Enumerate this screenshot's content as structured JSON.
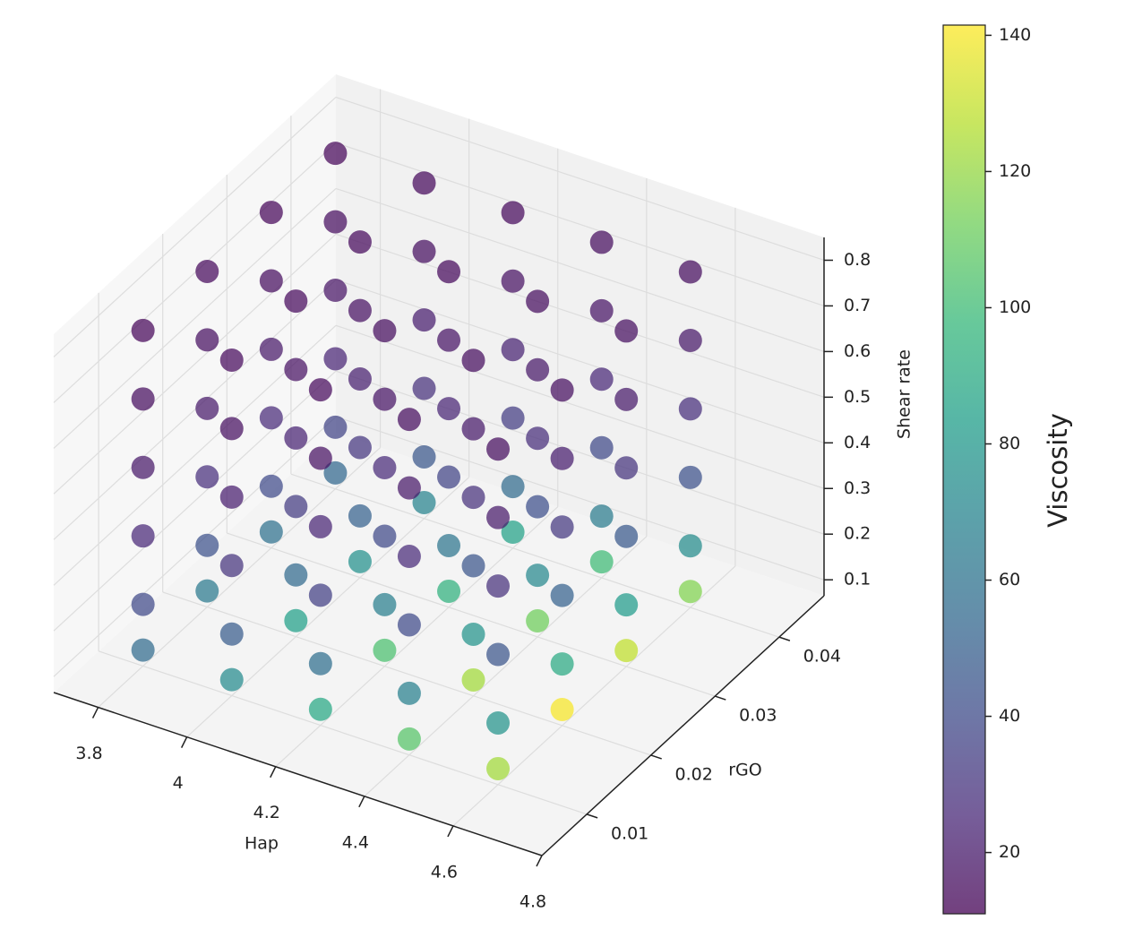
{
  "chart_data": {
    "type": "scatter3d",
    "xlabel": "Hap",
    "ylabel": "rGO",
    "zlabel": "Shear rate",
    "colorbar_label": "Viscosity",
    "x": [
      3.8,
      3.8,
      3.8,
      3.8,
      3.8,
      3.8,
      3.8,
      3.8,
      3.8,
      3.8,
      3.8,
      3.8,
      3.8,
      3.8,
      3.8,
      3.8,
      3.8,
      3.8,
      3.8,
      3.8,
      3.8,
      3.8,
      3.8,
      3.8,
      4.0,
      4.0,
      4.0,
      4.0,
      4.0,
      4.0,
      4.0,
      4.0,
      4.0,
      4.0,
      4.0,
      4.0,
      4.0,
      4.0,
      4.0,
      4.0,
      4.0,
      4.0,
      4.0,
      4.0,
      4.0,
      4.0,
      4.0,
      4.0,
      4.2,
      4.2,
      4.2,
      4.2,
      4.2,
      4.2,
      4.2,
      4.2,
      4.2,
      4.2,
      4.2,
      4.2,
      4.2,
      4.2,
      4.2,
      4.2,
      4.2,
      4.2,
      4.2,
      4.2,
      4.2,
      4.2,
      4.2,
      4.2,
      4.4,
      4.4,
      4.4,
      4.4,
      4.4,
      4.4,
      4.4,
      4.4,
      4.4,
      4.4,
      4.4,
      4.4,
      4.4,
      4.4,
      4.4,
      4.4,
      4.4,
      4.4,
      4.4,
      4.4,
      4.4,
      4.4,
      4.4,
      4.4,
      4.6,
      4.6,
      4.6,
      4.6,
      4.6,
      4.6,
      4.6,
      4.6,
      4.6,
      4.6,
      4.6,
      4.6,
      4.6,
      4.6,
      4.6,
      4.6,
      4.6,
      4.6,
      4.6,
      4.6,
      4.6,
      4.6,
      4.6,
      4.6
    ],
    "y": [
      0.01,
      0.01,
      0.01,
      0.01,
      0.01,
      0.01,
      0.02,
      0.02,
      0.02,
      0.02,
      0.02,
      0.02,
      0.03,
      0.03,
      0.03,
      0.03,
      0.03,
      0.03,
      0.04,
      0.04,
      0.04,
      0.04,
      0.04,
      0.04,
      0.01,
      0.01,
      0.01,
      0.01,
      0.01,
      0.01,
      0.02,
      0.02,
      0.02,
      0.02,
      0.02,
      0.02,
      0.03,
      0.03,
      0.03,
      0.03,
      0.03,
      0.03,
      0.04,
      0.04,
      0.04,
      0.04,
      0.04,
      0.04,
      0.01,
      0.01,
      0.01,
      0.01,
      0.01,
      0.01,
      0.02,
      0.02,
      0.02,
      0.02,
      0.02,
      0.02,
      0.03,
      0.03,
      0.03,
      0.03,
      0.03,
      0.03,
      0.04,
      0.04,
      0.04,
      0.04,
      0.04,
      0.04,
      0.01,
      0.01,
      0.01,
      0.01,
      0.01,
      0.01,
      0.02,
      0.02,
      0.02,
      0.02,
      0.02,
      0.02,
      0.03,
      0.03,
      0.03,
      0.03,
      0.03,
      0.03,
      0.04,
      0.04,
      0.04,
      0.04,
      0.04,
      0.04,
      0.01,
      0.01,
      0.01,
      0.01,
      0.01,
      0.01,
      0.02,
      0.02,
      0.02,
      0.02,
      0.02,
      0.02,
      0.03,
      0.03,
      0.03,
      0.03,
      0.03,
      0.03,
      0.04,
      0.04,
      0.04,
      0.04,
      0.04,
      0.04
    ],
    "z": [
      0.1,
      0.2,
      0.35,
      0.5,
      0.65,
      0.8,
      0.1,
      0.2,
      0.35,
      0.5,
      0.65,
      0.8,
      0.1,
      0.2,
      0.35,
      0.5,
      0.65,
      0.8,
      0.1,
      0.2,
      0.35,
      0.5,
      0.65,
      0.8,
      0.1,
      0.2,
      0.35,
      0.5,
      0.65,
      0.8,
      0.1,
      0.2,
      0.35,
      0.5,
      0.65,
      0.8,
      0.1,
      0.2,
      0.35,
      0.5,
      0.65,
      0.8,
      0.1,
      0.2,
      0.35,
      0.5,
      0.65,
      0.8,
      0.1,
      0.2,
      0.35,
      0.5,
      0.65,
      0.8,
      0.1,
      0.2,
      0.35,
      0.5,
      0.65,
      0.8,
      0.1,
      0.2,
      0.35,
      0.5,
      0.65,
      0.8,
      0.1,
      0.2,
      0.35,
      0.5,
      0.65,
      0.8,
      0.1,
      0.2,
      0.35,
      0.5,
      0.65,
      0.8,
      0.1,
      0.2,
      0.35,
      0.5,
      0.65,
      0.8,
      0.1,
      0.2,
      0.35,
      0.5,
      0.65,
      0.8,
      0.1,
      0.2,
      0.35,
      0.5,
      0.65,
      0.8,
      0.1,
      0.2,
      0.35,
      0.5,
      0.65,
      0.8,
      0.1,
      0.2,
      0.35,
      0.5,
      0.65,
      0.8,
      0.1,
      0.2,
      0.35,
      0.5,
      0.65,
      0.8,
      0.1,
      0.2,
      0.35,
      0.5,
      0.65,
      0.8
    ],
    "values": [
      56,
      39,
      25,
      19,
      15,
      13,
      64,
      43,
      28,
      20,
      16,
      14,
      59,
      40,
      26,
      19,
      15,
      13,
      54,
      37,
      24,
      18,
      15,
      13,
      73,
      48,
      30,
      21,
      16,
      14,
      84,
      55,
      33,
      23,
      17,
      14,
      76,
      51,
      31,
      22,
      17,
      14,
      69,
      46,
      29,
      21,
      16,
      14,
      89,
      58,
      35,
      24,
      17,
      14,
      103,
      67,
      39,
      26,
      18,
      15,
      94,
      61,
      37,
      24,
      18,
      14,
      85,
      56,
      34,
      23,
      17,
      14,
      106,
      68,
      40,
      26,
      19,
      15,
      123,
      78,
      45,
      29,
      20,
      15,
      112,
      72,
      42,
      27,
      19,
      15,
      100,
      65,
      39,
      25,
      18,
      15,
      123,
      78,
      45,
      29,
      20,
      15,
      140,
      90,
      51,
      32,
      21,
      16,
      129,
      82,
      47,
      30,
      20,
      16,
      116,
      74,
      43,
      28,
      19,
      15
    ],
    "xlim": [
      3.7,
      4.8
    ],
    "ylim": [
      0.003,
      0.047
    ],
    "zlim": [
      0.065,
      0.85
    ],
    "xticks": [
      3.8,
      4.0,
      4.2,
      4.4,
      4.6,
      4.8
    ],
    "yticks": [
      0.01,
      0.02,
      0.03,
      0.04
    ],
    "zticks": [
      0.1,
      0.2,
      0.3,
      0.4,
      0.5,
      0.6,
      0.7,
      0.8
    ],
    "clim": [
      11,
      141.5
    ],
    "cticks": [
      20,
      40,
      60,
      80,
      100,
      120,
      140
    ],
    "colormap": "viridis",
    "grid": true
  }
}
